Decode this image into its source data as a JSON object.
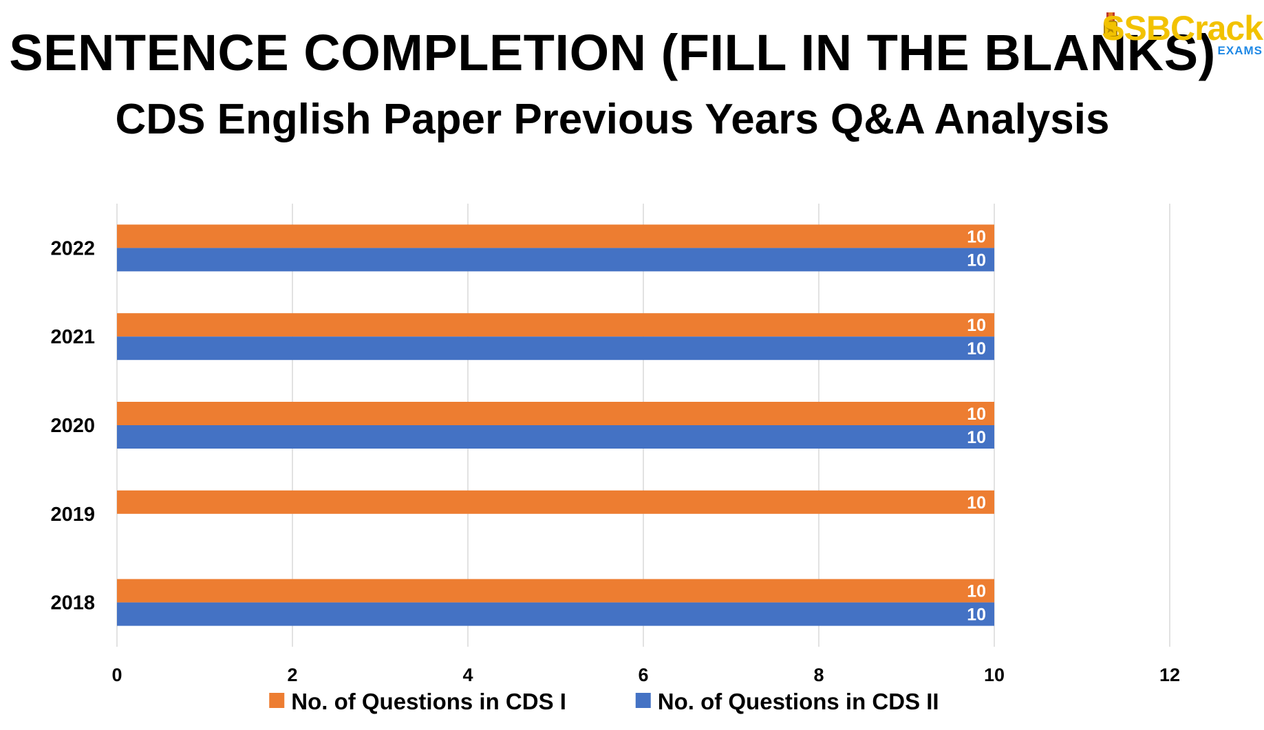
{
  "header": {
    "title": "SENTENCE COMPLETION (FILL IN THE BLANKS)",
    "subtitle": "CDS English Paper Previous Years Q&A Analysis"
  },
  "logo": {
    "text": "SSBCrack",
    "subtext": "EXAMS",
    "icon": "medal-icon",
    "color": "#f2c200",
    "subtext_color": "#1e88e5"
  },
  "chart_data": {
    "type": "bar",
    "orientation": "horizontal",
    "categories": [
      "2022",
      "2021",
      "2020",
      "2019",
      "2018"
    ],
    "series": [
      {
        "name": "No. of Questions in CDS I",
        "color": "#ed7d31",
        "values": [
          10,
          10,
          10,
          10,
          10
        ]
      },
      {
        "name": "No. of Questions in CDS II",
        "color": "#4472c4",
        "values": [
          10,
          10,
          10,
          null,
          10
        ]
      }
    ],
    "xlim": [
      0,
      12
    ],
    "xticks": [
      0,
      2,
      4,
      6,
      8,
      10,
      12
    ],
    "grid": true,
    "legend": "bottom",
    "data_labels": true
  }
}
